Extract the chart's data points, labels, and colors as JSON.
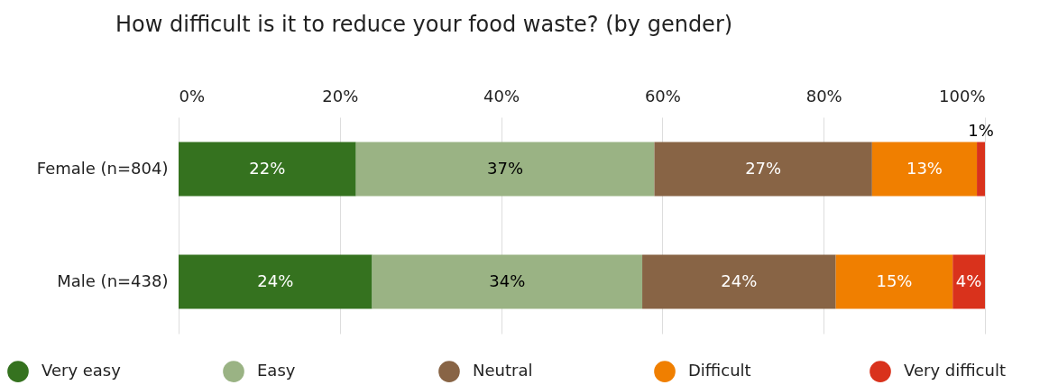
{
  "chart_data": {
    "type": "bar",
    "orientation": "horizontal",
    "stacked": true,
    "title": "How difficult is it to reduce your food waste? (by gender)",
    "categories": [
      "Female (n=804)",
      "Male (n=438)"
    ],
    "series": [
      {
        "name": "Very easy",
        "color": "#35721f",
        "values": [
          22,
          24
        ],
        "value_labels": [
          "22%",
          "24%"
        ]
      },
      {
        "name": "Easy",
        "color": "#9ab384",
        "values": [
          37,
          33.5
        ],
        "value_labels": [
          "37%",
          "34%"
        ]
      },
      {
        "name": "Neutral",
        "color": "#886445",
        "values": [
          27,
          24
        ],
        "value_labels": [
          "27%",
          "24%"
        ]
      },
      {
        "name": "Difficult",
        "color": "#f07f00",
        "values": [
          13,
          14.5
        ],
        "value_labels": [
          "13%",
          "15%"
        ]
      },
      {
        "name": "Very difficult",
        "color": "#d9321c",
        "values": [
          1,
          4
        ],
        "value_labels": [
          "1%",
          "4%"
        ]
      }
    ],
    "xlim": [
      0,
      100
    ],
    "xticks": [
      {
        "value": 0,
        "label": "0%"
      },
      {
        "value": 20,
        "label": "20%"
      },
      {
        "value": 40,
        "label": "40%"
      },
      {
        "value": 60,
        "label": "60%"
      },
      {
        "value": 80,
        "label": "80%"
      },
      {
        "value": 100,
        "label": "100%"
      }
    ],
    "grid": "x",
    "legend": "bottom"
  }
}
